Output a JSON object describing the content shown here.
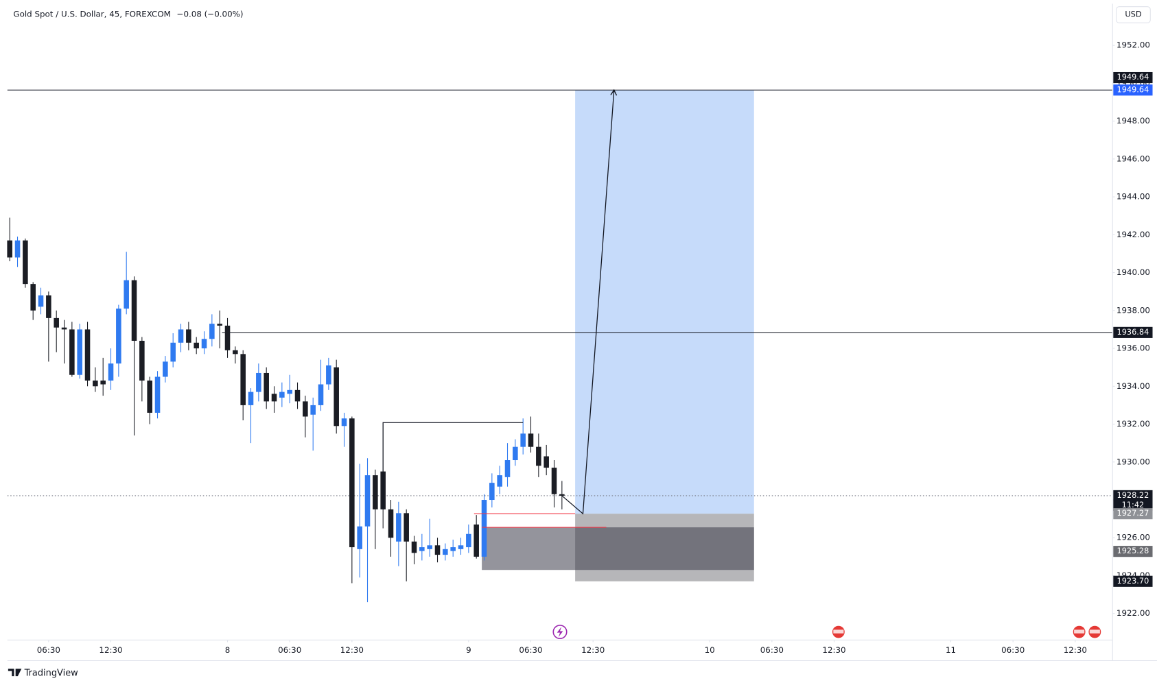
{
  "chart_data": {
    "type": "candlestick",
    "title": "Gold Spot / U.S. Dollar, 45, FOREXCOM",
    "change_label": "−0.08 (−0.00%)",
    "currency": "USD",
    "brand": "TradingView",
    "up_color": "#2f7af0",
    "down_color": "#1b1d24",
    "open": [
      1941.7,
      1940.8,
      1941.7,
      1939.4,
      1938.2,
      1938.8,
      1937.6,
      1937.1,
      1937.0,
      1934.6,
      1937.0,
      1934.3,
      1934.3,
      1934.3,
      1935.2,
      1938.1,
      1939.6,
      1936.4,
      1934.3,
      1932.6,
      1934.5,
      1935.3,
      1936.3,
      1937.0,
      1936.3,
      1936.0,
      1936.5,
      1937.3,
      1937.2,
      1935.9,
      1935.7,
      1933.0,
      1933.7,
      1934.7,
      1933.6,
      1933.4,
      1933.6,
      1933.8,
      1933.2,
      1932.5,
      1933.0,
      1934.1,
      1935.0,
      1931.9,
      1932.3,
      1925.4,
      1926.6,
      1929.3,
      1929.5,
      1927.5,
      1925.8,
      1927.3,
      1925.8,
      1925.3,
      1925.4,
      1925.6,
      1925.1,
      1925.3,
      1925.4,
      1925.5,
      1926.7,
      1925.0,
      1928.0,
      1928.7,
      1929.2,
      1930.1,
      1930.8,
      1931.5,
      1930.8,
      1930.3,
      1929.7,
      1928.3
    ],
    "high": [
      1942.9,
      1941.9,
      1941.8,
      1939.5,
      1939.2,
      1939.0,
      1938.0,
      1937.5,
      1937.4,
      1937.3,
      1937.4,
      1935.0,
      1935.5,
      1936.0,
      1938.3,
      1941.1,
      1939.8,
      1936.6,
      1934.5,
      1934.8,
      1935.6,
      1936.8,
      1937.3,
      1937.4,
      1936.6,
      1936.9,
      1937.8,
      1938.0,
      1937.6,
      1936.1,
      1935.9,
      1933.9,
      1935.2,
      1935.0,
      1934.0,
      1934.2,
      1934.6,
      1934.2,
      1933.5,
      1933.4,
      1935.4,
      1935.5,
      1935.4,
      1932.6,
      1932.4,
      1929.9,
      1930.2,
      1929.6,
      1932.1,
      1928.0,
      1927.9,
      1927.5,
      1926.1,
      1926.2,
      1927.0,
      1926.0,
      1925.7,
      1925.9,
      1926.0,
      1926.7,
      1927.2,
      1928.3,
      1929.4,
      1929.8,
      1931.0,
      1931.2,
      1932.3,
      1932.4,
      1931.5,
      1930.9,
      1930.1,
      1929.0
    ],
    "low": [
      1940.6,
      1940.3,
      1939.2,
      1937.5,
      1937.8,
      1935.3,
      1935.8,
      1935.2,
      1934.5,
      1934.4,
      1934.0,
      1933.7,
      1933.5,
      1933.8,
      1934.5,
      1937.8,
      1931.4,
      1933.2,
      1932.0,
      1932.3,
      1934.2,
      1935.0,
      1935.8,
      1935.9,
      1935.7,
      1935.7,
      1936.1,
      1936.0,
      1935.5,
      1935.2,
      1932.2,
      1931.0,
      1933.2,
      1932.8,
      1932.6,
      1932.9,
      1933.1,
      1932.8,
      1931.3,
      1930.6,
      1932.7,
      1933.8,
      1931.5,
      1930.8,
      1923.6,
      1923.9,
      1922.6,
      1925.4,
      1926.5,
      1925.0,
      1924.5,
      1923.7,
      1924.6,
      1924.8,
      1925.0,
      1924.7,
      1924.8,
      1925.0,
      1925.1,
      1925.2,
      1924.9,
      1924.8,
      1927.6,
      1928.3,
      1928.7,
      1929.8,
      1930.4,
      1930.5,
      1929.2,
      1929.3,
      1927.6,
      1927.5
    ],
    "close": [
      1940.8,
      1941.7,
      1939.4,
      1938.0,
      1938.8,
      1937.6,
      1937.1,
      1937.0,
      1934.6,
      1937.0,
      1934.3,
      1934.0,
      1934.1,
      1935.2,
      1938.1,
      1939.6,
      1936.4,
      1934.3,
      1932.6,
      1934.5,
      1935.3,
      1936.3,
      1937.0,
      1936.3,
      1936.0,
      1936.5,
      1937.3,
      1937.2,
      1935.9,
      1935.7,
      1933.0,
      1933.7,
      1934.7,
      1933.2,
      1933.2,
      1933.7,
      1933.8,
      1933.2,
      1932.4,
      1933.0,
      1934.1,
      1935.1,
      1931.9,
      1932.3,
      1925.5,
      1926.6,
      1929.3,
      1927.5,
      1927.5,
      1926.0,
      1927.3,
      1925.8,
      1925.2,
      1925.5,
      1925.6,
      1925.1,
      1925.4,
      1925.5,
      1925.6,
      1926.2,
      1925.0,
      1928.0,
      1928.9,
      1929.3,
      1930.1,
      1930.8,
      1931.5,
      1930.8,
      1929.8,
      1929.7,
      1928.3,
      1928.22
    ],
    "xlim": [
      -0.3,
      141.8
    ],
    "xticks": [
      {
        "value": 5,
        "label": "06:30"
      },
      {
        "value": 13,
        "label": "12:30"
      },
      {
        "value": 28,
        "label": "8"
      },
      {
        "value": 36,
        "label": "06:30"
      },
      {
        "value": 44,
        "label": "12:30"
      },
      {
        "value": 59,
        "label": "9"
      },
      {
        "value": 67,
        "label": "06:30"
      },
      {
        "value": 75,
        "label": "12:30"
      },
      {
        "value": 90,
        "label": "10"
      },
      {
        "value": 98,
        "label": "06:30"
      },
      {
        "value": 106,
        "label": "12:30"
      },
      {
        "value": 121,
        "label": "11"
      },
      {
        "value": 129,
        "label": "06:30"
      },
      {
        "value": 137,
        "label": "12:30"
      }
    ],
    "ylim": [
      1920.6,
      1954.2
    ],
    "yticks": [
      {
        "value": 1922,
        "label": "1922.00"
      },
      {
        "value": 1924,
        "label": "1924.00"
      },
      {
        "value": 1926,
        "label": "1926.00"
      },
      {
        "value": 1928,
        "label": "1928.00"
      },
      {
        "value": 1930,
        "label": "1930.00"
      },
      {
        "value": 1932,
        "label": "1932.00"
      },
      {
        "value": 1934,
        "label": "1934.00"
      },
      {
        "value": 1936,
        "label": "1936.00"
      },
      {
        "value": 1938,
        "label": "1938.00"
      },
      {
        "value": 1940,
        "label": "1940.00"
      },
      {
        "value": 1942,
        "label": "1942.00"
      },
      {
        "value": 1944,
        "label": "1944.00"
      },
      {
        "value": 1946,
        "label": "1946.00"
      },
      {
        "value": 1948,
        "label": "1948.00"
      },
      {
        "value": 1950,
        "label": "1950.00"
      },
      {
        "value": 1952,
        "label": "1952.00"
      }
    ],
    "grid": false,
    "lines": [
      {
        "value": 1949.64,
        "from": -0.3,
        "style": "solid",
        "color": "#131722"
      },
      {
        "value": 1936.84,
        "from": 27.3,
        "style": "solid",
        "color": "#131722"
      },
      {
        "value": 1928.22,
        "from": -0.3,
        "style": "dotted",
        "color": "#787b86"
      }
    ],
    "position": {
      "x": [
        72.7,
        95.7
      ],
      "target": 1949.64,
      "entry": 1927.27,
      "stop": 1923.7,
      "profit_color": "#c6dbfa",
      "loss_color": "#a9a9ad"
    },
    "order_block": {
      "x": [
        60.7,
        95.7
      ],
      "top": 1926.55,
      "bottom": 1924.3,
      "color": "#3c3c4a"
    },
    "red_lines": [
      {
        "x": [
          59.7,
          72.7
        ],
        "value": 1927.27,
        "color": "#f23645"
      },
      {
        "x": [
          60.7,
          76.7
        ],
        "value": 1926.55,
        "color": "#f23645"
      }
    ],
    "bracket": {
      "x": [
        48,
        66
      ],
      "low": 1927.5,
      "high": 1932.08
    },
    "path": {
      "x": [
        71,
        73.7,
        77.7
      ],
      "y": [
        1928.22,
        1927.27,
        1949.64
      ]
    },
    "price_labels": [
      {
        "value": 1949.64,
        "label": "1949.64",
        "color": "#2962ff"
      },
      {
        "value": 1949.64,
        "label": "1949.64",
        "color": "#131722"
      },
      {
        "value": 1936.84,
        "label": "1936.84",
        "color": "#131722"
      },
      {
        "value": 1928.22,
        "label": "1928.22",
        "color": "#131722",
        "sub": "11:42"
      },
      {
        "value": 1927.27,
        "label": "1927.27",
        "color": "#8f9196"
      },
      {
        "value": 1925.28,
        "label": "1925.28",
        "color": "#6a6b70"
      },
      {
        "value": 1923.7,
        "label": "1923.70",
        "color": "#131722"
      }
    ]
  }
}
